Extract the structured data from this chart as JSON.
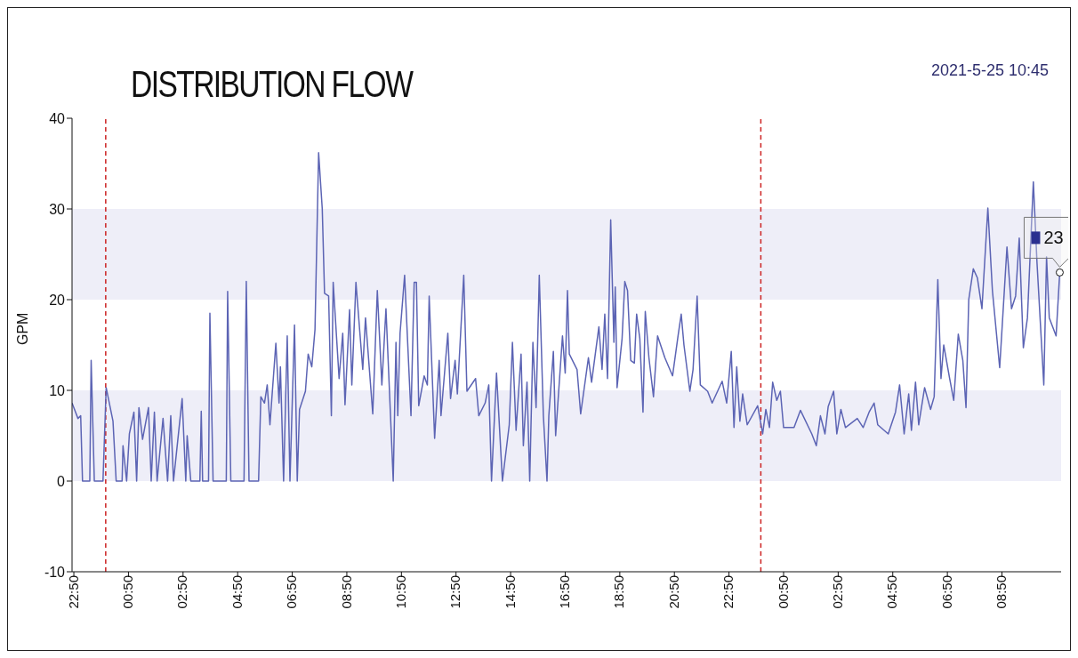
{
  "chart_data": {
    "type": "line",
    "title": "DISTRIBUTION FLOW",
    "ylabel": "GPM",
    "annotations": [
      "2021-5-25 10:45",
      {
        "text": "23",
        "x": "2021-05-25T10:57",
        "y": 23
      }
    ],
    "xlim": [
      "2021-05-23T22:46",
      "2021-05-25T11:00"
    ],
    "xticks": [
      {
        "value": "2021-05-23T22:50",
        "label": "22:50"
      },
      {
        "value": "2021-05-24T00:50",
        "label": "00:50"
      },
      {
        "value": "2021-05-24T02:50",
        "label": "02:50"
      },
      {
        "value": "2021-05-24T04:50",
        "label": "04:50"
      },
      {
        "value": "2021-05-24T06:50",
        "label": "06:50"
      },
      {
        "value": "2021-05-24T08:50",
        "label": "08:50"
      },
      {
        "value": "2021-05-24T10:50",
        "label": "10:50"
      },
      {
        "value": "2021-05-24T12:50",
        "label": "12:50"
      },
      {
        "value": "2021-05-24T14:50",
        "label": "14:50"
      },
      {
        "value": "2021-05-24T16:50",
        "label": "16:50"
      },
      {
        "value": "2021-05-24T18:50",
        "label": "18:50"
      },
      {
        "value": "2021-05-24T20:50",
        "label": "20:50"
      },
      {
        "value": "2021-05-24T22:50",
        "label": "22:50"
      },
      {
        "value": "2021-05-25T00:50",
        "label": "00:50"
      },
      {
        "value": "2021-05-25T02:50",
        "label": "02:50"
      },
      {
        "value": "2021-05-25T04:50",
        "label": "04:50"
      },
      {
        "value": "2021-05-25T06:50",
        "label": "06:50"
      },
      {
        "value": "2021-05-25T08:50",
        "label": "08:50"
      }
    ],
    "ylim": [
      -10,
      40
    ],
    "yticks": [
      -10,
      0,
      10,
      20,
      30,
      40
    ],
    "grid": false,
    "marker": "none",
    "line_style": "solid",
    "bands": [
      {
        "axis": "y",
        "from": 0,
        "to": 10,
        "color": "#eeeef8"
      },
      {
        "axis": "y",
        "from": 20,
        "to": 30,
        "color": "#eeeef8"
      }
    ],
    "ref_lines": [
      {
        "axis": "x",
        "value": "2021-05-24T00:00",
        "color": "#cc2222",
        "line_style": "dashed"
      },
      {
        "axis": "x",
        "value": "2021-05-25T00:00",
        "color": "#cc2222",
        "line_style": "dashed"
      }
    ],
    "series": [
      {
        "color": "#5c64b4",
        "x": [
          "2021-05-23T22:46",
          "2021-05-23T22:59",
          "2021-05-23T23:05",
          "2021-05-23T23:09",
          "2021-05-23T23:25",
          "2021-05-23T23:28",
          "2021-05-23T23:35",
          "2021-05-23T23:54",
          "2021-05-24T00:01",
          "2021-05-24T00:16",
          "2021-05-24T00:23",
          "2021-05-24T00:36",
          "2021-05-24T00:38",
          "2021-05-24T00:46",
          "2021-05-24T00:52",
          "2021-05-24T01:02",
          "2021-05-24T01:08",
          "2021-05-24T01:13",
          "2021-05-24T01:21",
          "2021-05-24T01:34",
          "2021-05-24T01:40",
          "2021-05-24T01:47",
          "2021-05-24T01:53",
          "2021-05-24T02:06",
          "2021-05-24T02:16",
          "2021-05-24T02:23",
          "2021-05-24T02:29",
          "2021-05-24T02:48",
          "2021-05-24T02:56",
          "2021-05-24T02:59",
          "2021-05-24T03:07",
          "2021-05-24T03:27",
          "2021-05-24T03:30",
          "2021-05-24T03:33",
          "2021-05-24T03:46",
          "2021-05-24T03:49",
          "2021-05-24T03:56",
          "2021-05-24T04:25",
          "2021-05-24T04:28",
          "2021-05-24T04:35",
          "2021-05-24T05:04",
          "2021-05-24T05:09",
          "2021-05-24T05:15",
          "2021-05-24T05:36",
          "2021-05-24T05:41",
          "2021-05-24T05:49",
          "2021-05-24T05:55",
          "2021-05-24T06:01",
          "2021-05-24T06:14",
          "2021-05-24T06:21",
          "2021-05-24T06:24",
          "2021-05-24T06:31",
          "2021-05-24T06:39",
          "2021-05-24T06:45",
          "2021-05-24T06:55",
          "2021-05-24T07:01",
          "2021-05-24T07:06",
          "2021-05-24T07:19",
          "2021-05-24T07:25",
          "2021-05-24T07:33",
          "2021-05-24T07:40",
          "2021-05-24T07:48",
          "2021-05-24T07:56",
          "2021-05-24T08:01",
          "2021-05-24T08:10",
          "2021-05-24T08:16",
          "2021-05-24T08:20",
          "2021-05-24T08:33",
          "2021-05-24T08:41",
          "2021-05-24T08:46",
          "2021-05-24T08:56",
          "2021-05-24T09:01",
          "2021-05-24T09:10",
          "2021-05-24T09:25",
          "2021-05-24T09:31",
          "2021-05-24T09:47",
          "2021-05-24T09:57",
          "2021-05-24T10:07",
          "2021-05-24T10:16",
          "2021-05-24T10:26",
          "2021-05-24T10:32",
          "2021-05-24T10:38",
          "2021-05-24T10:42",
          "2021-05-24T10:47",
          "2021-05-24T10:57",
          "2021-05-24T11:11",
          "2021-05-24T11:18",
          "2021-05-24T11:23",
          "2021-05-24T11:28",
          "2021-05-24T11:40",
          "2021-05-24T11:47",
          "2021-05-24T11:51",
          "2021-05-24T12:03",
          "2021-05-24T12:13",
          "2021-05-24T12:17",
          "2021-05-24T12:32",
          "2021-05-24T12:38",
          "2021-05-24T12:48",
          "2021-05-24T12:53",
          "2021-05-24T13:07",
          "2021-05-24T13:14",
          "2021-05-24T13:33",
          "2021-05-24T13:40",
          "2021-05-24T13:54",
          "2021-05-24T14:02",
          "2021-05-24T14:08",
          "2021-05-24T14:19",
          "2021-05-24T14:32",
          "2021-05-24T14:47",
          "2021-05-24T14:54",
          "2021-05-24T15:02",
          "2021-05-24T15:13",
          "2021-05-24T15:18",
          "2021-05-24T15:26",
          "2021-05-24T15:32",
          "2021-05-24T15:39",
          "2021-05-24T15:46",
          "2021-05-24T15:53",
          "2021-05-24T16:02",
          "2021-05-24T16:10",
          "2021-05-24T16:14",
          "2021-05-24T16:24",
          "2021-05-24T16:29",
          "2021-05-24T16:44",
          "2021-05-24T16:50",
          "2021-05-24T16:55",
          "2021-05-24T16:59",
          "2021-05-24T17:16",
          "2021-05-24T17:24",
          "2021-05-24T17:41",
          "2021-05-24T17:48",
          "2021-05-24T18:04",
          "2021-05-24T18:11",
          "2021-05-24T18:17",
          "2021-05-24T18:23",
          "2021-05-24T18:30",
          "2021-05-24T18:37",
          "2021-05-24T18:40",
          "2021-05-24T18:44",
          "2021-05-24T18:55",
          "2021-05-24T19:01",
          "2021-05-24T19:07",
          "2021-05-24T19:14",
          "2021-05-24T19:22",
          "2021-05-24T19:27",
          "2021-05-24T19:34",
          "2021-05-24T19:41",
          "2021-05-24T19:46",
          "2021-05-24T19:54",
          "2021-05-24T20:04",
          "2021-05-24T20:13",
          "2021-05-24T20:29",
          "2021-05-24T20:46",
          "2021-05-24T20:58",
          "2021-05-24T21:05",
          "2021-05-24T21:11",
          "2021-05-24T21:24",
          "2021-05-24T21:31",
          "2021-05-24T21:40",
          "2021-05-24T21:47",
          "2021-05-24T22:03",
          "2021-05-24T22:13",
          "2021-05-24T22:35",
          "2021-05-24T22:45",
          "2021-05-24T22:55",
          "2021-05-24T23:01",
          "2021-05-24T23:07",
          "2021-05-24T23:14",
          "2021-05-24T23:20",
          "2021-05-24T23:30",
          "2021-05-24T23:53",
          "2021-05-25T00:04",
          "2021-05-25T00:11",
          "2021-05-25T00:19",
          "2021-05-25T00:26",
          "2021-05-25T00:35",
          "2021-05-25T00:43",
          "2021-05-25T00:50",
          "2021-05-25T01:13",
          "2021-05-25T01:27",
          "2021-05-25T01:52",
          "2021-05-25T02:02",
          "2021-05-25T02:11",
          "2021-05-25T02:21",
          "2021-05-25T02:28",
          "2021-05-25T02:40",
          "2021-05-25T02:47",
          "2021-05-25T02:56",
          "2021-05-25T03:06",
          "2021-05-25T03:32",
          "2021-05-25T03:45",
          "2021-05-25T03:58",
          "2021-05-25T04:09",
          "2021-05-25T04:17",
          "2021-05-25T04:40",
          "2021-05-25T04:56",
          "2021-05-25T05:05",
          "2021-05-25T05:15",
          "2021-05-25T05:25",
          "2021-05-25T05:31",
          "2021-05-25T05:40",
          "2021-05-25T05:47",
          "2021-05-25T06:00",
          "2021-05-25T06:13",
          "2021-05-25T06:21",
          "2021-05-25T06:29",
          "2021-05-25T06:36",
          "2021-05-25T06:42",
          "2021-05-25T06:55",
          "2021-05-25T07:04",
          "2021-05-25T07:14",
          "2021-05-25T07:24",
          "2021-05-25T07:31",
          "2021-05-25T07:37",
          "2021-05-25T07:47",
          "2021-05-25T07:56",
          "2021-05-25T08:06",
          "2021-05-25T08:19",
          "2021-05-25T08:29",
          "2021-05-25T08:45",
          "2021-05-25T09:01",
          "2021-05-25T09:11",
          "2021-05-25T09:20",
          "2021-05-25T09:28",
          "2021-05-25T09:37",
          "2021-05-25T09:46",
          "2021-05-25T09:59",
          "2021-05-25T10:07",
          "2021-05-25T10:22",
          "2021-05-25T10:28",
          "2021-05-25T10:34",
          "2021-05-25T10:49",
          "2021-05-25T10:57"
        ],
        "values": [
          8.6,
          6.9,
          7.2,
          0,
          0,
          13.3,
          0,
          0,
          10.3,
          6.6,
          0,
          0,
          3.9,
          0,
          5.2,
          7.6,
          0,
          8.1,
          4.6,
          8.1,
          0,
          7.6,
          0,
          6.9,
          0,
          7.2,
          0,
          9.1,
          0,
          5.0,
          0,
          0,
          7.7,
          0,
          0,
          18.5,
          0,
          0,
          20.9,
          0,
          0,
          22.0,
          0,
          0,
          9.3,
          8.6,
          10.6,
          6.2,
          15.2,
          8.6,
          12.6,
          0,
          16.0,
          0,
          17.2,
          0,
          7.9,
          9.9,
          14.0,
          12.6,
          16.7,
          36.2,
          30.0,
          20.7,
          20.4,
          7.2,
          21.9,
          11.3,
          16.3,
          8.4,
          18.9,
          10.6,
          21.9,
          12.3,
          18.0,
          7.4,
          21.0,
          10.6,
          19.0,
          7.2,
          0,
          15.3,
          7.2,
          16.3,
          22.7,
          7.2,
          21.9,
          21.9,
          8.3,
          11.6,
          10.6,
          20.4,
          4.7,
          13.3,
          7.2,
          16.3,
          9.1,
          13.3,
          9.6,
          22.7,
          9.9,
          11.3,
          7.2,
          8.6,
          10.6,
          0,
          11.9,
          0,
          6.2,
          15.3,
          5.6,
          14.0,
          3.9,
          10.9,
          0,
          15.3,
          8.1,
          22.7,
          7.2,
          0,
          7.2,
          14.3,
          5.0,
          16.0,
          11.9,
          21.0,
          14.0,
          12.3,
          7.4,
          13.6,
          10.9,
          17.0,
          12.3,
          18.4,
          11.3,
          28.8,
          15.3,
          21.4,
          10.3,
          15.7,
          22.0,
          21.0,
          13.3,
          13.0,
          18.4,
          15.7,
          7.6,
          18.7,
          13.6,
          9.3,
          16.0,
          13.6,
          11.6,
          16.0,
          18.4,
          15.0,
          9.9,
          12.3,
          20.4,
          10.6,
          9.9,
          8.6,
          11.0,
          8.6,
          14.3,
          5.9,
          12.6,
          6.6,
          9.6,
          6.2,
          8.3,
          5.2,
          7.9,
          5.9,
          10.9,
          8.9,
          9.9,
          5.9,
          5.9,
          7.8,
          5.2,
          3.9,
          7.2,
          5.2,
          8.2,
          9.9,
          5.2,
          7.9,
          5.9,
          6.9,
          5.9,
          7.6,
          8.6,
          6.2,
          5.2,
          7.6,
          10.6,
          5.2,
          9.6,
          5.6,
          10.9,
          6.2,
          10.3,
          7.9,
          9.3,
          22.2,
          11.3,
          15.0,
          11.3,
          8.9,
          16.2,
          13.3,
          8.1,
          20.0,
          23.4,
          22.4,
          19.0,
          30.1,
          21.0,
          12.5,
          25.8,
          19.0,
          20.4,
          26.8,
          14.7,
          18.0,
          33.0,
          24.1,
          10.6,
          24.7,
          18.0,
          16.0,
          23
        ]
      }
    ]
  }
}
